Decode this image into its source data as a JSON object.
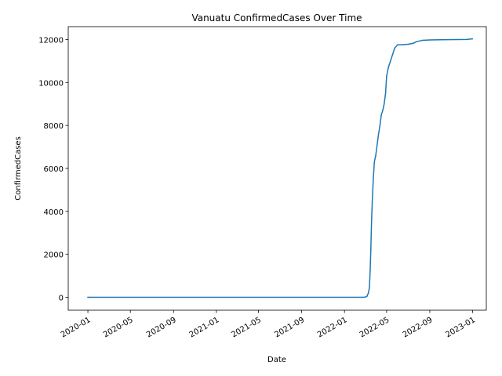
{
  "chart_data": {
    "type": "line",
    "title": "Vanuatu  ConfirmedCases Over Time",
    "xlabel": "Date",
    "ylabel": "ConfirmedCases",
    "grid": false,
    "legend": "none",
    "line_color": "#1f77b4",
    "xlim": [
      "2019-11-06",
      "2023-02-09"
    ],
    "ylim": [
      -600,
      12600
    ],
    "xticks": [
      {
        "date": "2020-01-01",
        "label": "2020-01"
      },
      {
        "date": "2020-05-01",
        "label": "2020-05"
      },
      {
        "date": "2020-09-01",
        "label": "2020-09"
      },
      {
        "date": "2021-01-01",
        "label": "2021-01"
      },
      {
        "date": "2021-05-01",
        "label": "2021-05"
      },
      {
        "date": "2021-09-01",
        "label": "2021-09"
      },
      {
        "date": "2022-01-01",
        "label": "2022-01"
      },
      {
        "date": "2022-05-01",
        "label": "2022-05"
      },
      {
        "date": "2022-09-01",
        "label": "2022-09"
      },
      {
        "date": "2023-01-01",
        "label": "2023-01"
      }
    ],
    "yticks": [
      0,
      2000,
      4000,
      6000,
      8000,
      10000,
      12000
    ],
    "series": [
      {
        "points": [
          {
            "x": "2020-01-01",
            "y": 0
          },
          {
            "x": "2022-02-20",
            "y": 0
          },
          {
            "x": "2022-03-01",
            "y": 10
          },
          {
            "x": "2022-03-06",
            "y": 50
          },
          {
            "x": "2022-03-10",
            "y": 200
          },
          {
            "x": "2022-03-13",
            "y": 450
          },
          {
            "x": "2022-03-15",
            "y": 1200
          },
          {
            "x": "2022-03-17",
            "y": 2200
          },
          {
            "x": "2022-03-19",
            "y": 3500
          },
          {
            "x": "2022-03-21",
            "y": 4400
          },
          {
            "x": "2022-03-24",
            "y": 5500
          },
          {
            "x": "2022-03-27",
            "y": 6300
          },
          {
            "x": "2022-03-31",
            "y": 6600
          },
          {
            "x": "2022-04-04",
            "y": 7100
          },
          {
            "x": "2022-04-08",
            "y": 7600
          },
          {
            "x": "2022-04-12",
            "y": 8000
          },
          {
            "x": "2022-04-16",
            "y": 8500
          },
          {
            "x": "2022-04-20",
            "y": 8700
          },
          {
            "x": "2022-04-24",
            "y": 9000
          },
          {
            "x": "2022-04-28",
            "y": 9500
          },
          {
            "x": "2022-05-01",
            "y": 10300
          },
          {
            "x": "2022-05-06",
            "y": 10700
          },
          {
            "x": "2022-05-12",
            "y": 11000
          },
          {
            "x": "2022-05-18",
            "y": 11300
          },
          {
            "x": "2022-05-24",
            "y": 11600
          },
          {
            "x": "2022-06-01",
            "y": 11750
          },
          {
            "x": "2022-06-15",
            "y": 11760
          },
          {
            "x": "2022-07-01",
            "y": 11780
          },
          {
            "x": "2022-07-15",
            "y": 11820
          },
          {
            "x": "2022-07-25",
            "y": 11900
          },
          {
            "x": "2022-08-10",
            "y": 11960
          },
          {
            "x": "2022-09-01",
            "y": 11980
          },
          {
            "x": "2022-10-01",
            "y": 11990
          },
          {
            "x": "2022-11-15",
            "y": 12000
          },
          {
            "x": "2022-12-15",
            "y": 12005
          },
          {
            "x": "2022-12-25",
            "y": 12020
          },
          {
            "x": "2022-12-31",
            "y": 12030
          }
        ]
      }
    ]
  }
}
